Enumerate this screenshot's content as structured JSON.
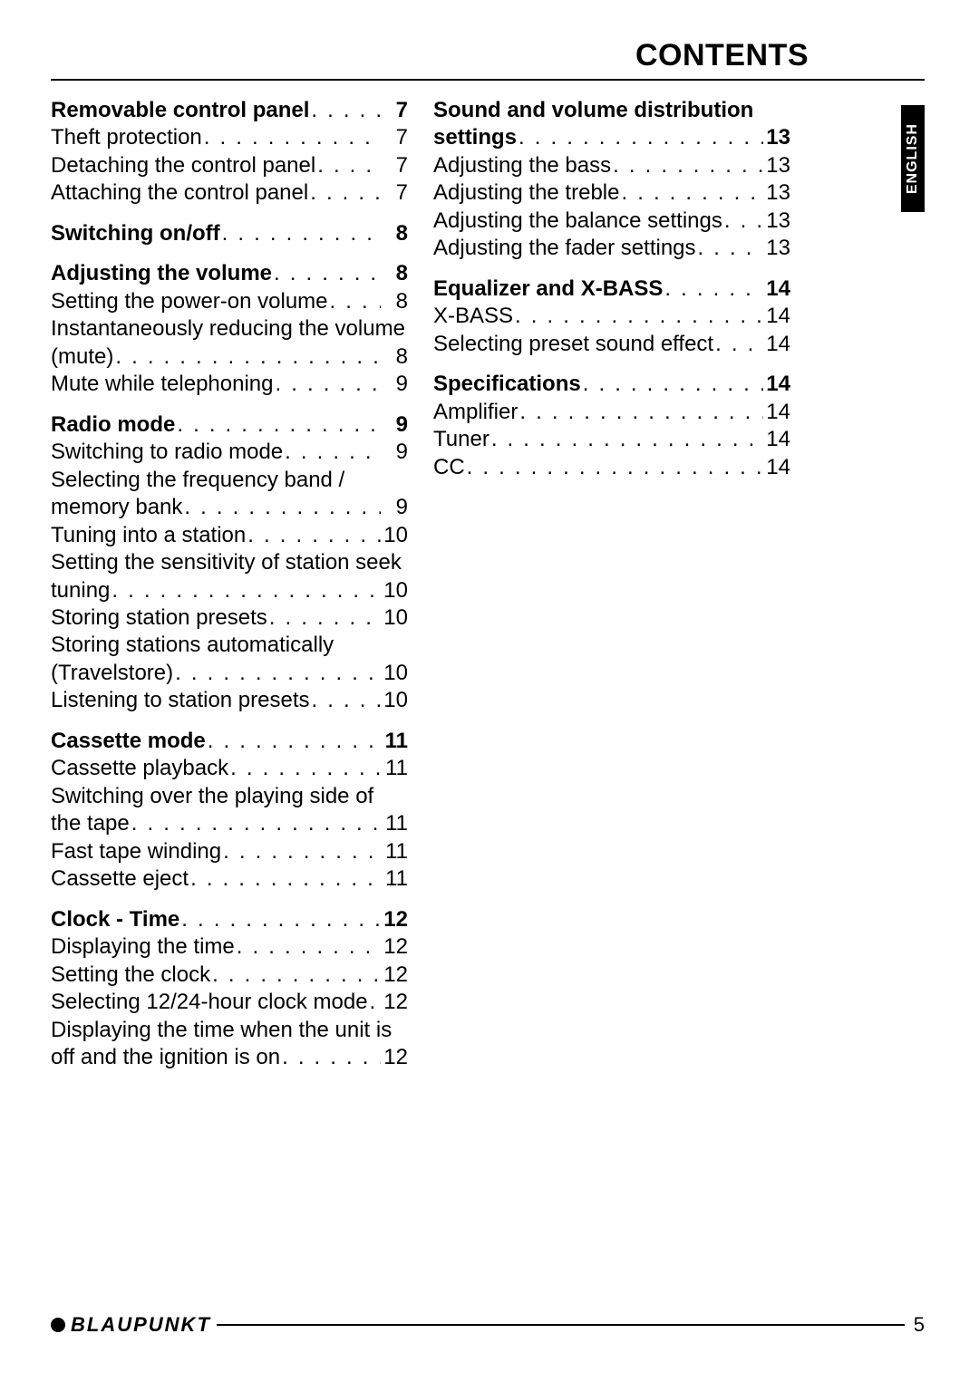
{
  "title": "CONTENTS",
  "language_tab": "ENGLISH",
  "brand": "BLAUPUNKT",
  "page_number": "5",
  "colors": {
    "text": "#000000",
    "background": "#ffffff",
    "tab_bg": "#000000",
    "tab_text": "#ffffff"
  },
  "fonts": {
    "body_pt": 24,
    "title_pt": 34,
    "brand_pt": 22
  },
  "left_sections": [
    {
      "heading": {
        "label": "Removable control panel",
        "page": "7"
      },
      "items": [
        {
          "label": "Theft protection",
          "page": "7"
        },
        {
          "label": "Detaching the control panel",
          "page": "7"
        },
        {
          "label": "Attaching the control panel",
          "page": "7"
        }
      ]
    },
    {
      "heading": {
        "label": "Switching on/off",
        "page": "8"
      },
      "items": []
    },
    {
      "heading": {
        "label": "Adjusting the volume",
        "page": "8"
      },
      "items": [
        {
          "label": "Setting the power-on volume",
          "page": "8"
        },
        {
          "label": "Instantaneously reducing the volume (mute)",
          "page": "8"
        },
        {
          "label": "Mute while telephoning",
          "page": "9"
        }
      ]
    },
    {
      "heading": {
        "label": "Radio mode",
        "page": "9"
      },
      "items": [
        {
          "label": "Switching to radio mode",
          "page": "9"
        },
        {
          "label": "Selecting the frequency band / memory bank",
          "page": "9"
        },
        {
          "label": "Tuning into a station",
          "page": "10"
        },
        {
          "label": "Setting the sensitivity of station seek tuning",
          "page": "10"
        },
        {
          "label": "Storing station presets",
          "page": "10"
        },
        {
          "label": "Storing stations automatically (Travelstore)",
          "page": "10"
        },
        {
          "label": "Listening to station presets",
          "page": "10"
        }
      ]
    },
    {
      "heading": {
        "label": "Cassette mode",
        "page": "11"
      },
      "items": [
        {
          "label": "Cassette playback",
          "page": "11"
        },
        {
          "label": "Switching over the playing side of the tape",
          "page": "11"
        },
        {
          "label": "Fast tape winding",
          "page": "11"
        },
        {
          "label": "Cassette eject",
          "page": "11"
        }
      ]
    },
    {
      "heading": {
        "label": "Clock - Time",
        "page": "12"
      },
      "items": [
        {
          "label": "Displaying the time",
          "page": "12"
        },
        {
          "label": "Setting the clock",
          "page": "12"
        },
        {
          "label": "Selecting 12/24-hour clock mode",
          "page": "12"
        },
        {
          "label": "Displaying the time when the unit is off and the ignition is on",
          "page": "12"
        }
      ]
    }
  ],
  "right_sections": [
    {
      "heading": {
        "label": "Sound and volume distribution settings",
        "page": "13"
      },
      "items": [
        {
          "label": "Adjusting the bass",
          "page": "13"
        },
        {
          "label": "Adjusting the treble",
          "page": "13"
        },
        {
          "label": "Adjusting the balance settings",
          "page": "13"
        },
        {
          "label": "Adjusting the fader settings",
          "page": "13"
        }
      ]
    },
    {
      "heading": {
        "label": "Equalizer and X-BASS",
        "page": "14"
      },
      "items": [
        {
          "label": "X-BASS",
          "page": "14"
        },
        {
          "label": "Selecting preset sound effect",
          "page": "14"
        }
      ]
    },
    {
      "heading": {
        "label": "Specifications",
        "page": "14"
      },
      "items": [
        {
          "label": "Amplifier",
          "page": "14"
        },
        {
          "label": "Tuner",
          "page": "14"
        },
        {
          "label": "CC",
          "page": "14"
        }
      ]
    }
  ]
}
